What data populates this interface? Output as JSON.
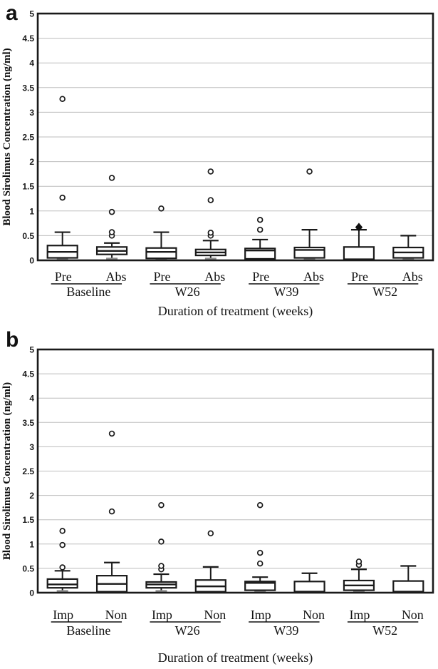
{
  "chart_data": [
    {
      "type": "boxplot",
      "panel_label": "a",
      "title": "",
      "ylabel": "Blood Sirolimus Concentration (ng/ml)",
      "xlabel": "Duration of treatment (weeks)",
      "ylim": [
        0,
        5
      ],
      "ytick_step": 0.5,
      "yticks": [
        "5",
        "4.5",
        "4",
        "3.5",
        "3",
        "2.5",
        "2",
        "1.5",
        "1",
        "0.5",
        "0"
      ],
      "grid": true,
      "legend": "none",
      "categories": [
        "Baseline",
        "W26",
        "W39",
        "W52"
      ],
      "subgroups": [
        "Pre",
        "Abs"
      ],
      "boxes": [
        {
          "category": "Baseline",
          "subgroup": "Pre",
          "whisker_low": 0.01,
          "q1": 0.05,
          "median": 0.17,
          "q3": 0.3,
          "whisker_high": 0.57,
          "outliers": [
            1.27,
            3.27
          ],
          "outlier_marker": "circle"
        },
        {
          "category": "Baseline",
          "subgroup": "Abs",
          "whisker_low": 0.03,
          "q1": 0.12,
          "median": 0.19,
          "q3": 0.27,
          "whisker_high": 0.35,
          "outliers": [
            0.5,
            0.57,
            0.98,
            1.67
          ],
          "outlier_marker": "circle"
        },
        {
          "category": "W26",
          "subgroup": "Pre",
          "whisker_low": 0.01,
          "q1": 0.04,
          "median": 0.17,
          "q3": 0.25,
          "whisker_high": 0.57,
          "outliers": [
            1.05
          ],
          "outlier_marker": "circle"
        },
        {
          "category": "W26",
          "subgroup": "Abs",
          "whisker_low": 0.01,
          "q1": 0.1,
          "median": 0.16,
          "q3": 0.22,
          "whisker_high": 0.4,
          "outliers": [
            0.5,
            0.56,
            1.22,
            1.8
          ],
          "outlier_marker": "circle"
        },
        {
          "category": "W39",
          "subgroup": "Pre",
          "whisker_low": 0.01,
          "q1": 0.03,
          "median": 0.2,
          "q3": 0.24,
          "whisker_high": 0.42,
          "outliers": [
            0.62,
            0.82
          ],
          "outlier_marker": "circle"
        },
        {
          "category": "W39",
          "subgroup": "Abs",
          "whisker_low": 0.01,
          "q1": 0.05,
          "median": 0.21,
          "q3": 0.26,
          "whisker_high": 0.62,
          "outliers": [
            1.8
          ],
          "outlier_marker": "circle"
        },
        {
          "category": "W52",
          "subgroup": "Pre",
          "whisker_low": 0.01,
          "q1": 0.02,
          "median": 0.02,
          "q3": 0.27,
          "whisker_high": 0.62,
          "outliers": [
            0.67
          ],
          "outlier_marker": "diamond"
        },
        {
          "category": "W52",
          "subgroup": "Abs",
          "whisker_low": 0.01,
          "q1": 0.05,
          "median": 0.16,
          "q3": 0.26,
          "whisker_high": 0.5,
          "outliers": [],
          "outlier_marker": "circle"
        }
      ]
    },
    {
      "type": "boxplot",
      "panel_label": "b",
      "title": "",
      "ylabel": "Blood Sirolimus Concentration (ng/ml)",
      "xlabel": "Duration of treatment (weeks)",
      "ylim": [
        0,
        5
      ],
      "ytick_step": 0.5,
      "yticks": [
        "5",
        "4.5",
        "4",
        "3.5",
        "3",
        "2.5",
        "2",
        "1.5",
        "1",
        "0.5",
        "0"
      ],
      "grid": true,
      "legend": "none",
      "categories": [
        "Baseline",
        "W26",
        "W39",
        "W52"
      ],
      "subgroups": [
        "Imp",
        "Non"
      ],
      "boxes": [
        {
          "category": "Baseline",
          "subgroup": "Imp",
          "whisker_low": 0.02,
          "q1": 0.1,
          "median": 0.17,
          "q3": 0.28,
          "whisker_high": 0.45,
          "outliers": [
            0.52,
            0.98,
            1.27
          ],
          "outlier_marker": "circle"
        },
        {
          "category": "Baseline",
          "subgroup": "Non",
          "whisker_low": 0.01,
          "q1": 0.02,
          "median": 0.18,
          "q3": 0.35,
          "whisker_high": 0.62,
          "outliers": [
            1.67,
            3.27
          ],
          "outlier_marker": "circle"
        },
        {
          "category": "W26",
          "subgroup": "Imp",
          "whisker_low": 0.01,
          "q1": 0.1,
          "median": 0.17,
          "q3": 0.22,
          "whisker_high": 0.38,
          "outliers": [
            0.48,
            0.55,
            1.05,
            1.8
          ],
          "outlier_marker": "circle"
        },
        {
          "category": "W26",
          "subgroup": "Non",
          "whisker_low": 0.01,
          "q1": 0.02,
          "median": 0.13,
          "q3": 0.26,
          "whisker_high": 0.53,
          "outliers": [
            1.22
          ],
          "outlier_marker": "circle"
        },
        {
          "category": "W39",
          "subgroup": "Imp",
          "whisker_low": 0.01,
          "q1": 0.05,
          "median": 0.2,
          "q3": 0.23,
          "whisker_high": 0.32,
          "outliers": [
            0.6,
            0.82,
            1.8
          ],
          "outlier_marker": "circle"
        },
        {
          "category": "W39",
          "subgroup": "Non",
          "whisker_low": 0.01,
          "q1": 0.02,
          "median": 0.02,
          "q3": 0.23,
          "whisker_high": 0.4,
          "outliers": [],
          "outlier_marker": "circle"
        },
        {
          "category": "W52",
          "subgroup": "Imp",
          "whisker_low": 0.01,
          "q1": 0.05,
          "median": 0.15,
          "q3": 0.25,
          "whisker_high": 0.48,
          "outliers": [
            0.57,
            0.64
          ],
          "outlier_marker": "circle"
        },
        {
          "category": "W52",
          "subgroup": "Non",
          "whisker_low": 0.01,
          "q1": 0.02,
          "median": 0.02,
          "q3": 0.24,
          "whisker_high": 0.55,
          "outliers": [],
          "outlier_marker": "circle"
        }
      ]
    }
  ]
}
